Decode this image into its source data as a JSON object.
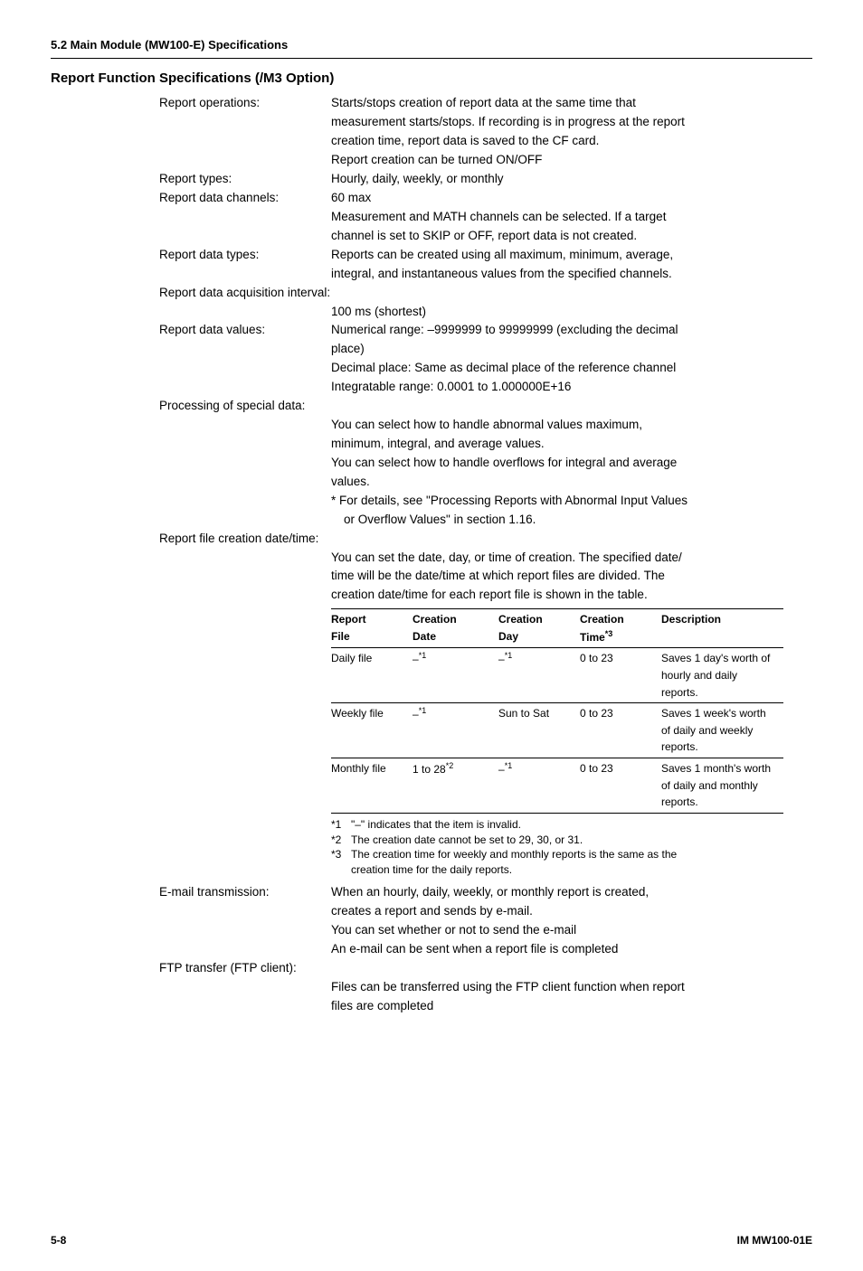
{
  "sectionHeader": "5.2  Main Module (MW100-E) Specifications",
  "title": "Report Function Specifications (/M3 Option)",
  "rows": {
    "reportOps": {
      "label": "Report operations:",
      "line1": "Starts/stops creation of report data at the same time that",
      "line2": "measurement starts/stops. If recording is in progress at the report",
      "line3": "creation time, report data is saved to the CF card.",
      "line4": "Report creation can be turned ON/OFF"
    },
    "reportTypes": {
      "label": "Report types:",
      "val": "Hourly, daily, weekly, or monthly"
    },
    "reportCh": {
      "label": "Report data channels:",
      "val": "60 max",
      "line2": "Measurement and MATH channels can be selected. If a target",
      "line3": "channel is set to SKIP or OFF, report data is not created."
    },
    "reportDataTypes": {
      "label": "Report data types:",
      "line1": "Reports can be created using all maximum, minimum, average,",
      "line2": "integral, and instantaneous values from the specified channels."
    },
    "acqInterval": {
      "label": "Report data acquisition interval:",
      "val": "100 ms (shortest)"
    },
    "dataValues": {
      "label": "Report data values:",
      "line1": "Numerical range: –9999999 to 99999999 (excluding the decimal",
      "line2": "place)",
      "line3": "Decimal place: Same as decimal place of the reference channel",
      "line4": "Integratable range: 0.0001 to 1.000000E+16"
    },
    "processing": {
      "label": "Processing of special data:",
      "line1": "You can select how to handle abnormal values maximum,",
      "line2": "minimum, integral, and average values.",
      "line3": "You can select how to handle overflows for integral and average",
      "line4": "values.",
      "line5": "* For details, see \"Processing Reports with Abnormal Input Values",
      "line6": "or Overflow Values\" in section 1.16."
    },
    "fileCreation": {
      "label": "Report file creation date/time:",
      "line1": "You can set the date, day, or time of creation. The specified date/",
      "line2": "time will be the date/time at which report files are divided. The",
      "line3": "creation date/time for each report file is shown in the table."
    },
    "email": {
      "label": "E-mail transmission:",
      "line1": "When an hourly, daily, weekly, or monthly report is created,",
      "line2": "creates a report and sends by e-mail.",
      "line3": "You can set whether or not to send the e-mail",
      "line4": "An e-mail can be sent when a report file is completed"
    },
    "ftp": {
      "label": "FTP transfer (FTP client):",
      "line1": "Files can be transferred using the FTP client function when report",
      "line2": "files are completed"
    }
  },
  "table": {
    "headers": {
      "h1a": "Report",
      "h1b": "File",
      "h2a": "Creation",
      "h2b": "Date",
      "h3a": "Creation",
      "h3b": "Day",
      "h4a": "Creation",
      "h4b": "Time",
      "h4sup": "*3",
      "h5": "Description"
    },
    "r1": {
      "c1": "Daily file",
      "c2": "–",
      "c2sup": "*1",
      "c3": "–",
      "c3sup": "*1",
      "c4": "0 to 23",
      "c5": "Saves 1 day's worth of hourly and daily reports."
    },
    "r2": {
      "c1": "Weekly file",
      "c2": "–",
      "c2sup": "*1",
      "c3": "Sun to Sat",
      "c4": "0 to 23",
      "c5": "Saves 1 week's worth of daily and weekly reports."
    },
    "r3": {
      "c1": "Monthly file",
      "c2": "1 to 28",
      "c2sup": "*2",
      "c3": "–",
      "c3sup": "*1",
      "c4": "0 to 23",
      "c5": "Saves 1 month's worth of daily and monthly reports."
    }
  },
  "notes": {
    "n1num": "*1",
    "n1": "\"–\" indicates that the item is invalid.",
    "n2num": "*2",
    "n2": "The creation date cannot be set to 29, 30, or 31.",
    "n3num": "*3",
    "n3a": "The creation time for weekly and monthly reports is the same as the",
    "n3b": "creation time for the daily reports."
  },
  "footer": {
    "left": "5-8",
    "right": "IM MW100-01E"
  }
}
